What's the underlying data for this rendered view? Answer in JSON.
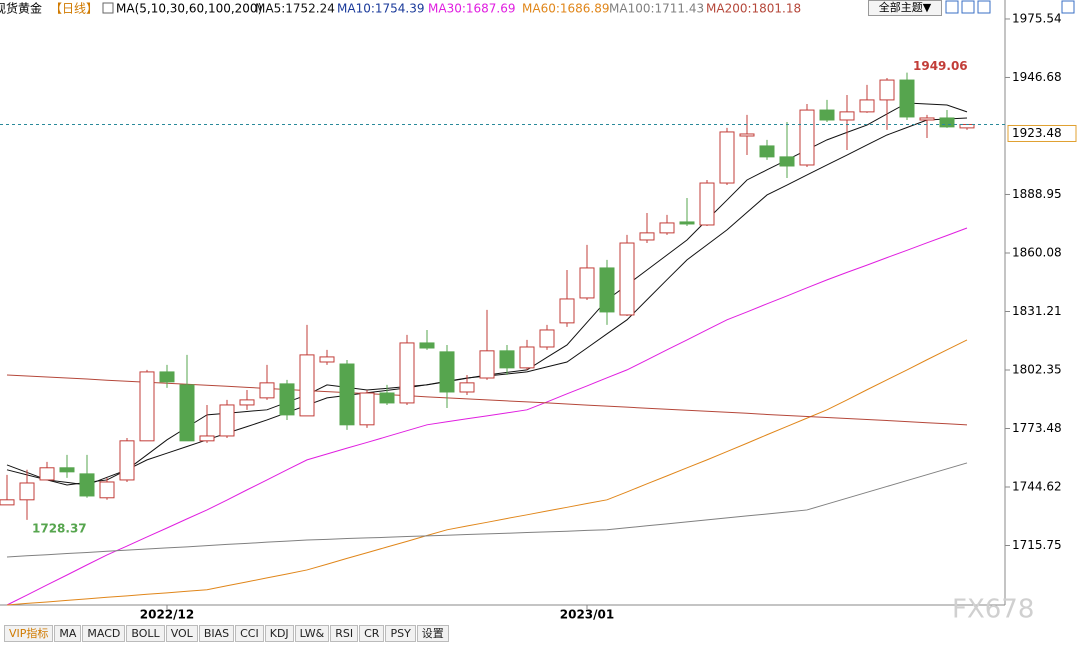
{
  "chart_data": {
    "type": "candlestick",
    "title": "现货黄金",
    "period": "【日线】",
    "indicator": "MA(5,10,30,60,100,200)",
    "categories": [
      null,
      null,
      null,
      null,
      null,
      null,
      null,
      null,
      "2022/12",
      null,
      null,
      null,
      null,
      null,
      null,
      null,
      null,
      null,
      null,
      null,
      null,
      null,
      null,
      null,
      null,
      null,
      null,
      null,
      null,
      "2023/01",
      null,
      null,
      null,
      null,
      null,
      null,
      null,
      null,
      null,
      null,
      null,
      null,
      null,
      null,
      null,
      null,
      null,
      null,
      null
    ],
    "open": [
      1735.8,
      1738.3,
      1748.1,
      1754.1,
      1751.1,
      1739.3,
      1748.1,
      1767.4,
      1801.4,
      1795.0,
      1767.4,
      1769.8,
      1785.1,
      1788.6,
      1795.5,
      1779.7,
      1806.3,
      1805.3,
      1775.3,
      1791.0,
      1786.1,
      1815.7,
      1811.3,
      1791.5,
      1798.4,
      1811.8,
      1803.4,
      1813.7,
      1825.6,
      1837.9,
      1852.7,
      1829.5,
      1866.5,
      1870.0,
      1875.4,
      1873.9,
      1894.6,
      1917.8,
      1912.9,
      1907.5,
      1903.5,
      1930.6,
      1925.7,
      1929.7,
      1935.6,
      1945.4,
      1925.7,
      1926.7,
      1921.8
    ],
    "high": [
      1750.6,
      1753.1,
      1757.0,
      1760.5,
      1760.5,
      1749.1,
      1768.8,
      1802.4,
      1804.9,
      1809.8,
      1785.1,
      1787.6,
      1792.5,
      1804.9,
      1797.5,
      1824.6,
      1812.3,
      1807.3,
      1792.5,
      1795.0,
      1819.7,
      1822.1,
      1814.7,
      1799.9,
      1832.0,
      1814.7,
      1817.2,
      1824.6,
      1851.7,
      1864.1,
      1856.7,
      1869.0,
      1879.8,
      1878.9,
      1887.2,
      1896.1,
      1921.8,
      1928.2,
      1915.9,
      1924.7,
      1933.6,
      1935.6,
      1938.0,
      1943.0,
      1946.4,
      1949.06,
      1928.2,
      1930.6,
      1923.7
    ],
    "low": [
      1735.8,
      1728.37,
      1748.1,
      1749.1,
      1739.3,
      1738.3,
      1747.1,
      1767.4,
      1793.5,
      1767.4,
      1766.4,
      1768.8,
      1782.7,
      1787.6,
      1777.7,
      1779.7,
      1804.9,
      1772.8,
      1773.8,
      1785.1,
      1785.1,
      1812.3,
      1783.6,
      1790.0,
      1797.5,
      1799.9,
      1802.4,
      1812.3,
      1823.6,
      1836.9,
      1824.6,
      1829.0,
      1865.0,
      1869.0,
      1873.4,
      1873.4,
      1893.6,
      1908.4,
      1906.0,
      1897.1,
      1902.5,
      1924.7,
      1910.9,
      1929.2,
      1920.8,
      1925.7,
      1916.8,
      1921.8,
      1920.8
    ],
    "close": [
      1738.3,
      1746.6,
      1754.1,
      1752.1,
      1740.2,
      1747.1,
      1767.4,
      1801.4,
      1796.5,
      1767.4,
      1769.8,
      1785.1,
      1787.6,
      1796.0,
      1780.2,
      1809.8,
      1808.8,
      1775.3,
      1791.0,
      1786.1,
      1815.7,
      1813.2,
      1791.5,
      1796.0,
      1811.8,
      1803.4,
      1813.7,
      1822.1,
      1837.4,
      1852.7,
      1831.0,
      1865.0,
      1870.0,
      1874.9,
      1874.4,
      1894.6,
      1919.8,
      1918.8,
      1907.5,
      1903.0,
      1930.6,
      1925.7,
      1929.7,
      1935.6,
      1945.4,
      1927.2,
      1926.7,
      1922.3,
      1923.48
    ],
    "up_color": "#c23d38",
    "down_color": "#56a54e",
    "series": [
      {
        "name": "MA5:1752.24",
        "color": "#111111",
        "values": [
          1755.5,
          1751.8,
          1748.1,
          1746.9,
          1745.6,
          1749.4,
          1753.1,
          1760.5,
          1767.9,
          1774.1,
          1780.2,
          1781.0,
          1781.9,
          1782.7,
          1786.4,
          1790.1,
          1795.0,
          1793.8,
          1792.5,
          1793.3,
          1794.2,
          1795.0,
          1796.6,
          1798.3,
          1799.9,
          1801.2,
          1802.4,
          1808.6,
          1814.7,
          1825.8,
          1836.9,
          1844.3,
          1851.7,
          1859.1,
          1866.5,
          1876.4,
          1886.2,
          1896.1,
          1901.1,
          1906.0,
          1911.0,
          1915.9,
          1919.6,
          1923.2,
          1928.7,
          1934.1,
          1933.6,
          1933.1,
          1929.7
        ]
      },
      {
        "name": "MA10:1754.39",
        "color": "#1a3a9a",
        "line_color": "#111111",
        "values": [
          1753.1,
          1750.6,
          1748.1,
          1745.6,
          1746.9,
          1748.1,
          1753.1,
          1758.0,
          1761.3,
          1764.6,
          1767.9,
          1771.2,
          1774.4,
          1777.7,
          1781.3,
          1785.0,
          1788.6,
          1789.8,
          1791.1,
          1792.3,
          1793.5,
          1795.1,
          1796.8,
          1798.4,
          1799.4,
          1800.4,
          1801.4,
          1803.9,
          1806.3,
          1813.2,
          1820.2,
          1827.1,
          1837.0,
          1846.9,
          1856.7,
          1864.1,
          1871.5,
          1880.1,
          1888.7,
          1893.6,
          1898.6,
          1903.5,
          1908.4,
          1913.4,
          1918.3,
          1922.0,
          1925.7,
          1926.2,
          1926.7
        ]
      },
      {
        "name": "MA30:1687.69",
        "color": "#e01ee0",
        "values": [
          1686.4,
          1691.3,
          1696.3,
          1701.2,
          1706.2,
          1711.1,
          1715.5,
          1720.0,
          1724.4,
          1728.9,
          1733.3,
          1738.2,
          1743.2,
          1748.1,
          1753.1,
          1758.0,
          1760.9,
          1763.8,
          1766.6,
          1769.5,
          1772.4,
          1775.3,
          1776.8,
          1778.3,
          1779.7,
          1781.2,
          1782.7,
          1786.6,
          1790.6,
          1794.5,
          1798.5,
          1802.4,
          1807.3,
          1812.3,
          1817.2,
          1822.2,
          1827.1,
          1831.0,
          1835.0,
          1838.9,
          1842.9,
          1846.8,
          1850.5,
          1854.1,
          1857.8,
          1861.4,
          1865.1,
          1868.7,
          1872.4
        ]
      },
      {
        "name": "MA60:1686.89",
        "color": "#e0861a",
        "values": [
          1686.4,
          1687.2,
          1687.9,
          1688.7,
          1689.4,
          1690.2,
          1690.9,
          1691.7,
          1692.4,
          1693.2,
          1693.9,
          1695.9,
          1697.8,
          1699.8,
          1701.7,
          1703.7,
          1706.5,
          1709.4,
          1712.2,
          1715.0,
          1717.8,
          1720.7,
          1723.5,
          1725.4,
          1727.2,
          1729.1,
          1730.9,
          1732.8,
          1734.6,
          1736.5,
          1738.3,
          1742.2,
          1746.2,
          1750.1,
          1754.1,
          1758.0,
          1762.1,
          1766.2,
          1770.4,
          1774.5,
          1778.6,
          1782.7,
          1787.6,
          1792.6,
          1797.5,
          1802.4,
          1807.4,
          1812.3,
          1817.2
        ]
      },
      {
        "name": "MA100:1711.43",
        "color": "#808080",
        "values": [
          1710.1,
          1710.7,
          1711.2,
          1711.8,
          1712.3,
          1712.9,
          1713.5,
          1714.0,
          1714.6,
          1715.1,
          1715.7,
          1716.3,
          1716.8,
          1717.4,
          1717.9,
          1718.5,
          1718.8,
          1719.2,
          1719.5,
          1719.8,
          1720.2,
          1720.5,
          1720.8,
          1721.2,
          1721.5,
          1721.8,
          1722.2,
          1722.5,
          1722.8,
          1723.2,
          1723.5,
          1724.5,
          1725.5,
          1726.4,
          1727.4,
          1728.4,
          1729.4,
          1730.4,
          1731.3,
          1732.3,
          1733.3,
          1736.2,
          1739.1,
          1742.0,
          1744.9,
          1747.8,
          1750.7,
          1753.6,
          1756.5
        ]
      },
      {
        "name": "MA200:1801.18",
        "color": "#b5473a",
        "values": [
          1799.9,
          1799.4,
          1798.9,
          1798.4,
          1797.9,
          1797.3,
          1796.8,
          1796.3,
          1795.8,
          1795.3,
          1794.8,
          1794.3,
          1793.8,
          1793.2,
          1792.7,
          1792.2,
          1791.7,
          1791.2,
          1790.7,
          1790.2,
          1789.7,
          1789.1,
          1788.6,
          1788.1,
          1787.6,
          1787.1,
          1786.6,
          1786.1,
          1785.6,
          1785.0,
          1784.5,
          1784.0,
          1783.5,
          1783.0,
          1782.5,
          1782.0,
          1781.5,
          1781.0,
          1780.4,
          1779.9,
          1779.4,
          1778.9,
          1778.4,
          1777.9,
          1777.4,
          1776.9,
          1776.3,
          1775.8,
          1775.3
        ]
      }
    ],
    "ylim": [
      1686.4,
      1984.9
    ],
    "yticks": [
      1715.75,
      1744.62,
      1773.48,
      1802.35,
      1831.21,
      1860.08,
      1888.95,
      1946.68,
      1975.54
    ],
    "grid": false,
    "annotations": {
      "high": 1949.06,
      "low": 1728.37,
      "last": 1923.48
    }
  },
  "ui": {
    "theme_button": "全部主题▼",
    "toolbar": [
      "VIP指标",
      "MA",
      "MACD",
      "BOLL",
      "VOL",
      "BIAS",
      "CCI",
      "KDJ",
      "LW&",
      "RSI",
      "CR",
      "PSY",
      "设置"
    ],
    "watermark": "FX678"
  }
}
